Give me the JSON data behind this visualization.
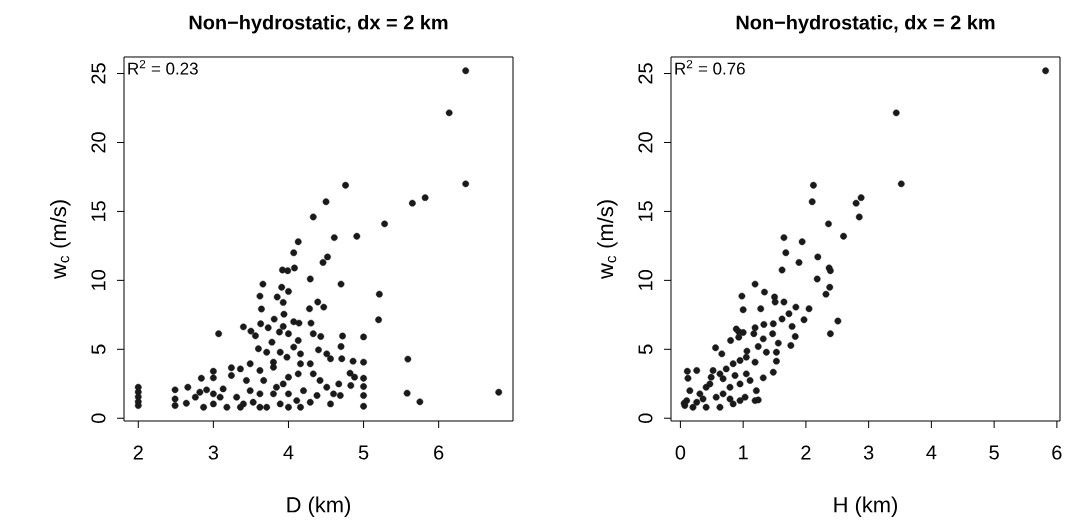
{
  "chart_data": [
    {
      "type": "scatter",
      "title": "Non−hydrostatic, dx = 2 km",
      "xlabel": "D (km)",
      "ylabel": "w$_{c}$ (m/s)",
      "annotations": [
        "R$^{2}$ = 0.23"
      ],
      "marker": "circle",
      "xlim": [
        1.81,
        6.99
      ],
      "ylim": [
        -0.2,
        26.2
      ],
      "xticks": [
        2,
        3,
        4,
        5,
        6
      ],
      "yticks": [
        0,
        5,
        10,
        15,
        20,
        25
      ],
      "series": [
        {
          "color": "#1a1a1a",
          "x": [
            6.36,
            6.14,
            6.36,
            4.76,
            5.65,
            5.82,
            4.5,
            4.33,
            5.28,
            4.91,
            4.61,
            4.13,
            4.07,
            4.52,
            4.46,
            3.92,
            3.99,
            4.08,
            4.29,
            4.7,
            3.66,
            3.91,
            4.0,
            3.62,
            3.85,
            3.93,
            4.39,
            4.28,
            4.47,
            5.21,
            5.2,
            3.64,
            3.94,
            3.81,
            3.63,
            4.07,
            4.3,
            3.07,
            3.4,
            3.5,
            3.56,
            3.73,
            3.93,
            3.88,
            4.0,
            4.14,
            4.13,
            4.33,
            4.43,
            4.72,
            5.0,
            3.78,
            3.6,
            3.71,
            3.89,
            4.07,
            4.4,
            4.51,
            4.7,
            4.71,
            4.56,
            4.86,
            5.0,
            5.59,
            5.58,
            5.75,
            6.8,
            5.0,
            5.0,
            5.0,
            5.0,
            4.82,
            4.88,
            4.83,
            4.67,
            4.69,
            4.51,
            4.33,
            4.29,
            4.16,
            3.98,
            3.8,
            3.49,
            3.36,
            3.24,
            3.24,
            3.0,
            3.0,
            2.84,
            2.66,
            2.49,
            2.49,
            2.49,
            2.64,
            2.76,
            2.87,
            2.82,
            2.91,
            3.0,
            3.0,
            3.13,
            3.18,
            3.31,
            3.36,
            3.49,
            3.53,
            3.67,
            3.71,
            3.8,
            3.89,
            3.93,
            4.0,
            4.0,
            4.0,
            4.11,
            4.16,
            4.2,
            4.29,
            4.38,
            4.42,
            4.56,
            4.6,
            4.13,
            3.62,
            3.44,
            3.09,
            3.62,
            3.4,
            3.8,
            4.16,
            2.0,
            2.0,
            2.0,
            2.0,
            2.0,
            3.62,
            3.84
          ],
          "values": [
            25.2,
            22.15,
            17.0,
            16.9,
            15.6,
            16.0,
            15.7,
            14.6,
            14.1,
            13.2,
            13.1,
            12.8,
            12.0,
            11.7,
            11.3,
            10.75,
            10.7,
            10.9,
            10.1,
            9.73,
            9.73,
            9.5,
            9.2,
            8.86,
            8.79,
            8.4,
            8.43,
            7.94,
            8.06,
            9.0,
            7.14,
            7.92,
            7.55,
            7.19,
            6.85,
            7.0,
            6.9,
            6.13,
            6.63,
            6.32,
            5.98,
            6.56,
            6.66,
            6.25,
            6.13,
            6.9,
            5.64,
            6.13,
            5.93,
            5.96,
            5.9,
            5.52,
            5.04,
            4.79,
            4.79,
            5.16,
            4.96,
            4.67,
            5.2,
            4.31,
            4.31,
            4.14,
            4.07,
            4.29,
            1.82,
            1.19,
            1.89,
            2.9,
            2.3,
            1.65,
            0.87,
            3.27,
            2.98,
            2.37,
            2.49,
            1.65,
            2.25,
            3.22,
            3.95,
            3.95,
            4.43,
            4.07,
            3.95,
            3.58,
            3.66,
            3.1,
            3.41,
            2.93,
            2.9,
            2.25,
            2.06,
            1.4,
            0.92,
            1.09,
            1.53,
            0.8,
            1.89,
            2.06,
            1.77,
            1.04,
            2.13,
            0.8,
            1.53,
            0.8,
            2.0,
            1.16,
            2.74,
            0.8,
            1.77,
            1.04,
            2.49,
            0.8,
            1.77,
            2.98,
            1.28,
            0.8,
            2.0,
            1.16,
            1.65,
            2.74,
            1.04,
            1.77,
            3.22,
            3.46,
            2.74,
            1.53,
            1.77,
            1.04,
            3.7,
            4.67,
            2.25,
            1.9,
            1.55,
            1.2,
            0.92,
            0.8,
            2.25
          ]
        }
      ]
    },
    {
      "type": "scatter",
      "title": "Non−hydrostatic, dx = 2 km",
      "xlabel": "H (km)",
      "ylabel": "w$_{c}$ (m/s)",
      "annotations": [
        "R$^{2}$ = 0.76"
      ],
      "marker": "circle",
      "xlim": [
        -0.15,
        6.05
      ],
      "ylim": [
        -0.2,
        26.2
      ],
      "xticks": [
        0,
        1,
        2,
        3,
        4,
        5,
        6
      ],
      "yticks": [
        0,
        5,
        10,
        15,
        20,
        25
      ],
      "series": [
        {
          "color": "#1a1a1a",
          "x": [
            5.82,
            3.44,
            3.52,
            2.12,
            2.1,
            2.8,
            2.88,
            2.85,
            2.36,
            2.6,
            1.65,
            1.94,
            1.68,
            2.19,
            1.89,
            1.62,
            2.37,
            2.39,
            2.18,
            1.19,
            2.38,
            2.32,
            1.34,
            0.98,
            1.5,
            1.51,
            1.65,
            1.0,
            1.28,
            1.84,
            2.05,
            1.73,
            1.97,
            2.51,
            2.39,
            1.62,
            1.48,
            1.33,
            1.19,
            0.89,
            0.93,
            1.0,
            1.78,
            1.83,
            1.76,
            1.56,
            1.47,
            1.32,
            1.17,
            0.8,
            0.56,
            0.93,
            0.66,
            1.06,
            1.24,
            1.37,
            1.53,
            1.53,
            1.48,
            1.32,
            1.19,
            1.05,
            0.95,
            0.84,
            0.73,
            0.63,
            0.52,
            0.49,
            0.11,
            0.26,
            0.12,
            1.21,
            1.19,
            1.24,
            1.03,
            0.95,
            1.11,
            0.79,
            0.68,
            0.41,
            0.31,
            0.15,
            0.1,
            0.07,
            0.2,
            0.41,
            0.63,
            0.84,
            0.36,
            0.57,
            0.79,
            0.95,
            0.47,
            0.68,
            0.26,
            0.06,
            1.05,
            0.87
          ],
          "values": [
            25.2,
            22.15,
            17.0,
            16.9,
            15.7,
            15.6,
            16.0,
            14.6,
            14.1,
            13.2,
            13.1,
            12.8,
            12.0,
            11.7,
            11.3,
            10.75,
            10.9,
            10.7,
            10.1,
            9.73,
            9.5,
            9.0,
            9.15,
            8.86,
            8.79,
            8.43,
            8.43,
            7.87,
            7.94,
            8.06,
            7.94,
            7.58,
            7.14,
            7.05,
            6.13,
            7.2,
            6.85,
            6.8,
            6.56,
            6.47,
            6.27,
            6.22,
            6.66,
            5.93,
            5.28,
            5.45,
            6.13,
            5.76,
            6.13,
            5.64,
            5.11,
            5.88,
            4.67,
            4.87,
            5.2,
            4.79,
            4.79,
            4.14,
            3.34,
            2.93,
            4.07,
            4.43,
            4.19,
            3.95,
            3.58,
            3.22,
            3.46,
            2.98,
            3.41,
            3.46,
            2.9,
            2.0,
            1.28,
            1.33,
            1.53,
            2.49,
            2.74,
            2.25,
            1.77,
            2.25,
            1.77,
            2.0,
            1.28,
            0.92,
            0.8,
            0.8,
            0.8,
            1.04,
            1.4,
            1.53,
            1.4,
            1.28,
            2.49,
            2.86,
            1.16,
            1.09,
            3.22,
            3.1
          ]
        }
      ]
    }
  ]
}
